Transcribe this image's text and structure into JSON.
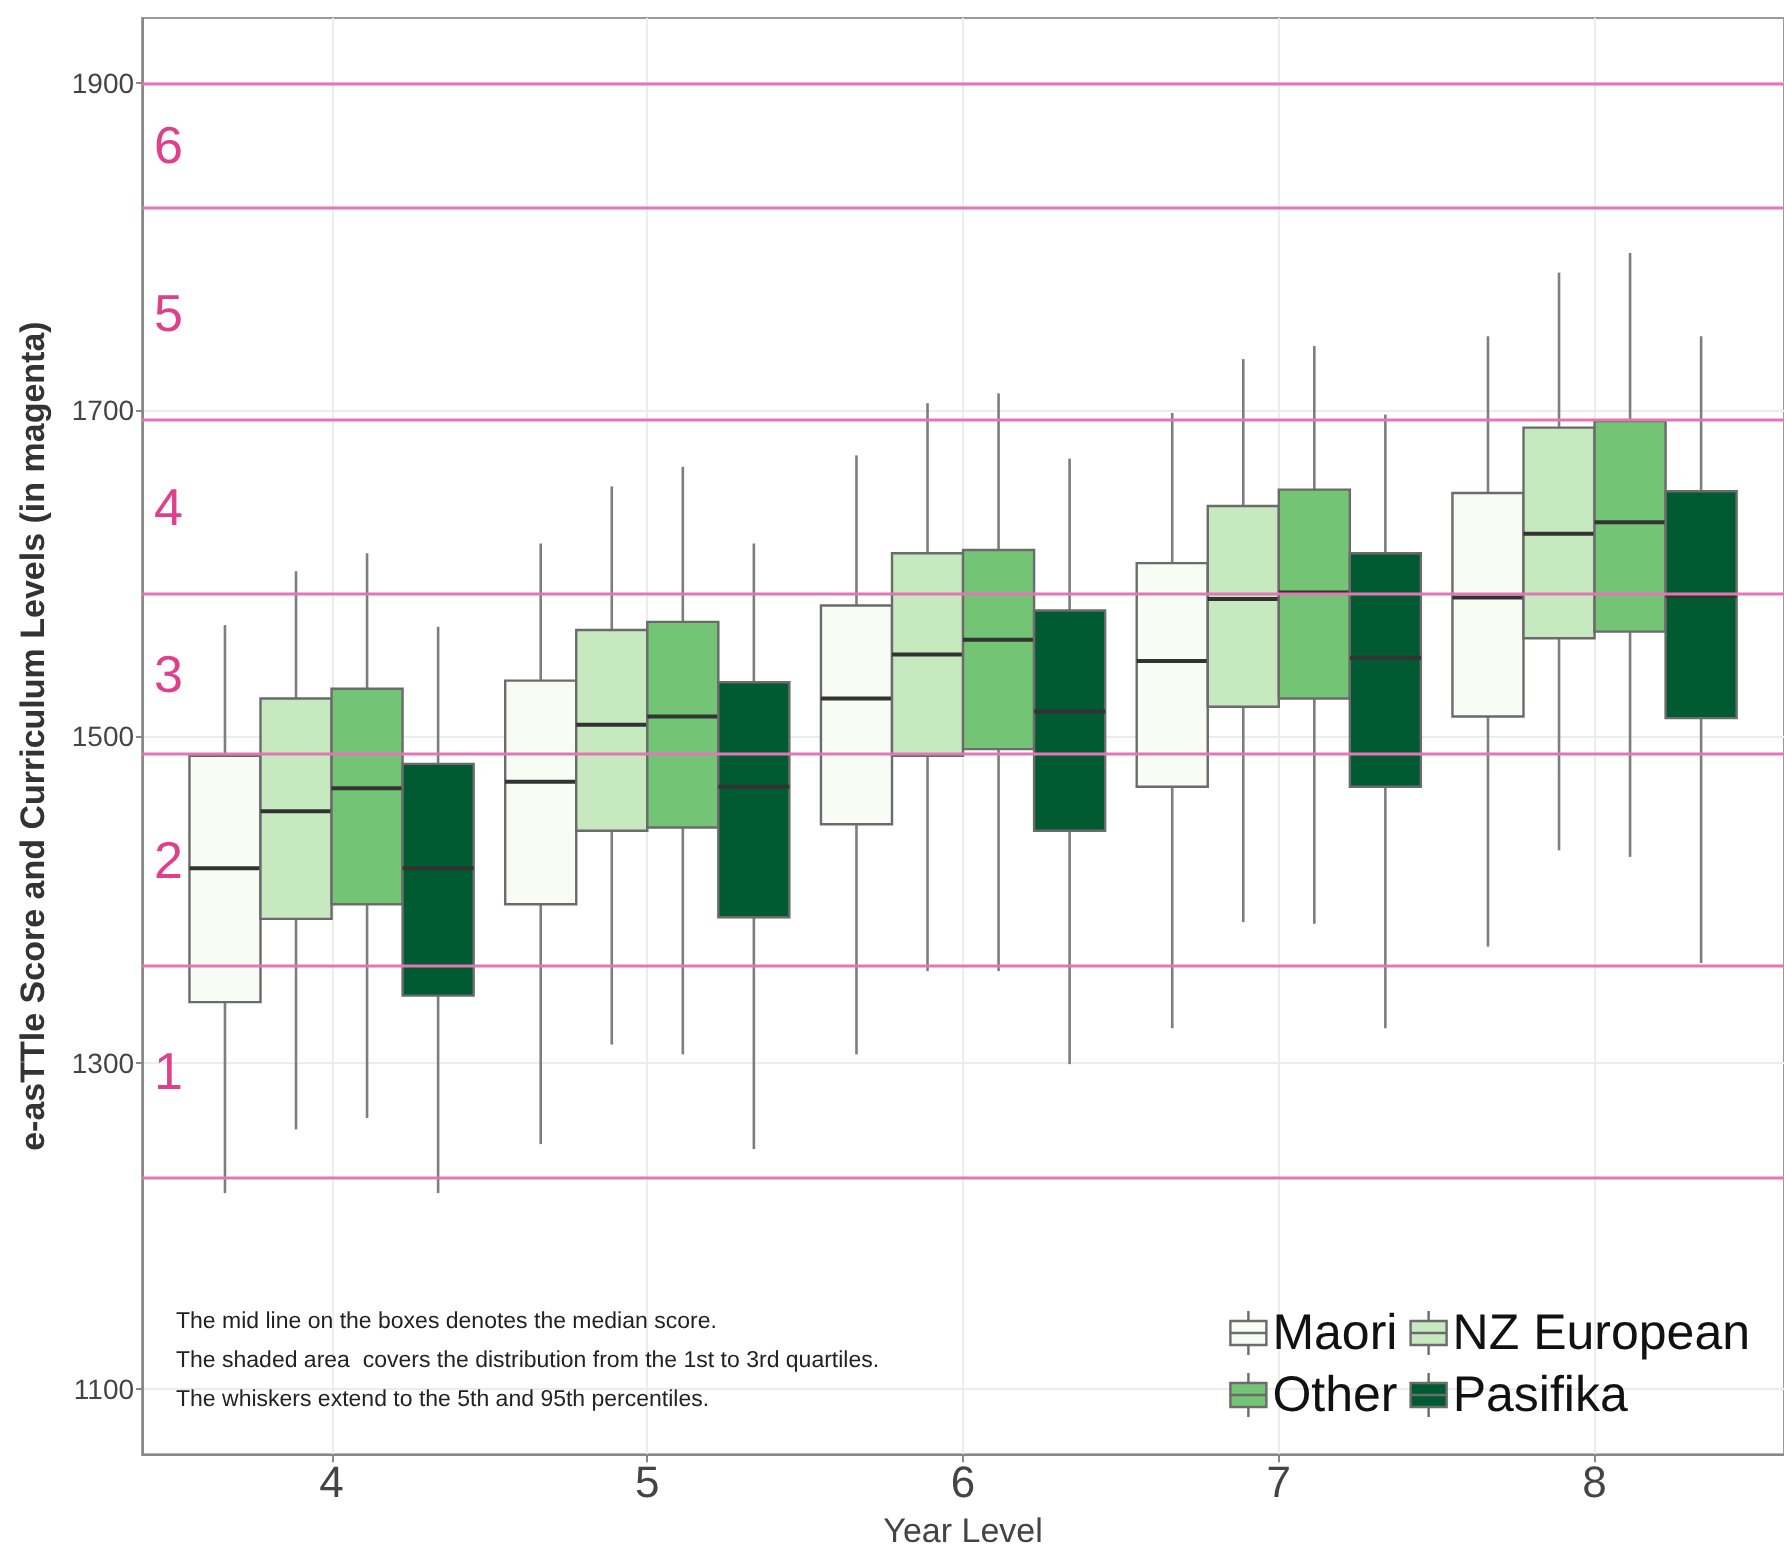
{
  "chart_data": {
    "type": "box",
    "xlabel": "Year Level",
    "ylabel": "e-asTTle Score and Curriculum Levels (in magenta)",
    "categories": [
      "4",
      "5",
      "6",
      "7",
      "8"
    ],
    "series": [
      {
        "name": "Maori",
        "color": "#f7fcf5",
        "boxes": [
          {
            "low": 1220,
            "q1": 1337,
            "median": 1419,
            "q3": 1488,
            "high": 1568
          },
          {
            "low": 1250,
            "q1": 1397,
            "median": 1472,
            "q3": 1534,
            "high": 1618
          },
          {
            "low": 1305,
            "q1": 1446,
            "median": 1523,
            "q3": 1580,
            "high": 1672
          },
          {
            "low": 1321,
            "q1": 1469,
            "median": 1546,
            "q3": 1606,
            "high": 1698
          },
          {
            "low": 1371,
            "q1": 1512,
            "median": 1585,
            "q3": 1649,
            "high": 1745
          }
        ]
      },
      {
        "name": "NZ European",
        "color": "#c7e9c0",
        "boxes": [
          {
            "low": 1259,
            "q1": 1388,
            "median": 1454,
            "q3": 1523,
            "high": 1601
          },
          {
            "low": 1311,
            "q1": 1442,
            "median": 1507,
            "q3": 1565,
            "high": 1653
          },
          {
            "low": 1356,
            "q1": 1488,
            "median": 1550,
            "q3": 1612,
            "high": 1704
          },
          {
            "low": 1386,
            "q1": 1518,
            "median": 1584,
            "q3": 1641,
            "high": 1731
          },
          {
            "low": 1430,
            "q1": 1560,
            "median": 1624,
            "q3": 1689,
            "high": 1784
          }
        ]
      },
      {
        "name": "Other",
        "color": "#74c476",
        "boxes": [
          {
            "low": 1266,
            "q1": 1397,
            "median": 1468,
            "q3": 1529,
            "high": 1612
          },
          {
            "low": 1305,
            "q1": 1444,
            "median": 1512,
            "q3": 1570,
            "high": 1665
          },
          {
            "low": 1356,
            "q1": 1492,
            "median": 1559,
            "q3": 1614,
            "high": 1710
          },
          {
            "low": 1385,
            "q1": 1523,
            "median": 1588,
            "q3": 1651,
            "high": 1739
          },
          {
            "low": 1426,
            "q1": 1564,
            "median": 1631,
            "q3": 1693,
            "high": 1796
          }
        ]
      },
      {
        "name": "Pasifika",
        "color": "#005a32",
        "boxes": [
          {
            "low": 1220,
            "q1": 1341,
            "median": 1419,
            "q3": 1483,
            "high": 1567
          },
          {
            "low": 1247,
            "q1": 1389,
            "median": 1469,
            "q3": 1533,
            "high": 1618
          },
          {
            "low": 1299,
            "q1": 1442,
            "median": 1515,
            "q3": 1577,
            "high": 1670
          },
          {
            "low": 1321,
            "q1": 1469,
            "median": 1548,
            "q3": 1612,
            "high": 1697
          },
          {
            "low": 1361,
            "q1": 1511,
            "median": 1586,
            "q3": 1650,
            "high": 1745
          }
        ]
      }
    ],
    "ylim": [
      1060,
      1940
    ],
    "yticks": [
      1100,
      1300,
      1500,
      1700,
      1900
    ],
    "grid": true,
    "legend": "bottom right",
    "ref_lines": [
      {
        "axis": "y",
        "value": 1230,
        "color": "#e377b4"
      },
      {
        "axis": "y",
        "value": 1359,
        "color": "#e377b4"
      },
      {
        "axis": "y",
        "value": 1489,
        "color": "#e377b4"
      },
      {
        "axis": "y",
        "value": 1587,
        "color": "#e377b4"
      },
      {
        "axis": "y",
        "value": 1694,
        "color": "#e377b4"
      },
      {
        "axis": "y",
        "value": 1824,
        "color": "#e377b4"
      },
      {
        "axis": "y",
        "value": 1900,
        "color": "#e377b4"
      }
    ],
    "annotations": [
      "1",
      "2",
      "3",
      "4",
      "5",
      "6",
      "The mid line on the boxes denotes the median score.",
      "The shaded area  covers the distribution from the 1st to 3rd quartiles.",
      "The whiskers extend to the 5th and 95th percentiles."
    ]
  }
}
